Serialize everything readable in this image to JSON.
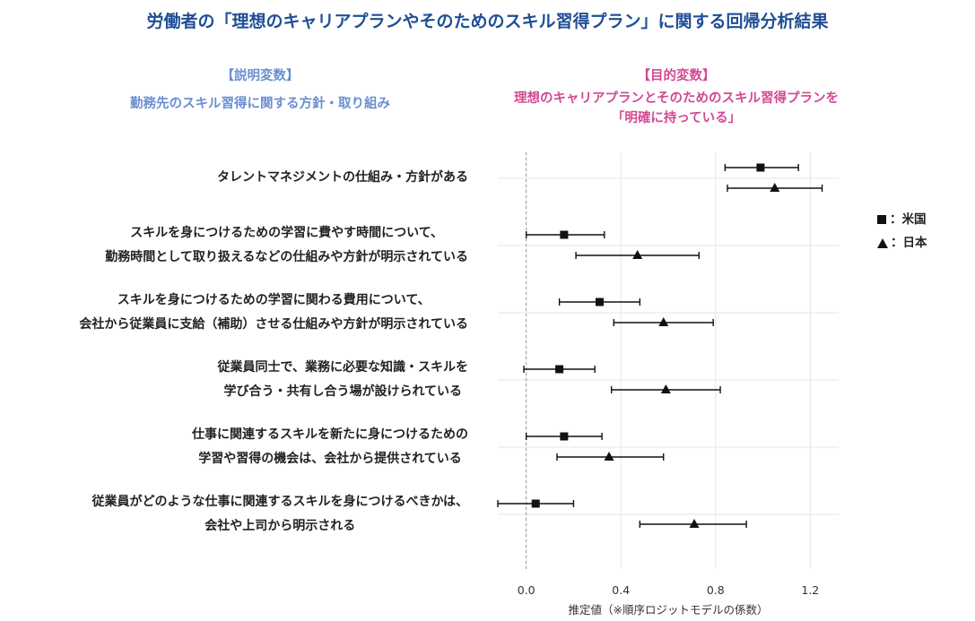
{
  "title": "労働者の「理想のキャリアプランやそのためのスキル習得プラン」に関する回帰分析結果",
  "explanatory": {
    "tag": "【説明変数】",
    "text": "勤務先のスキル習得に関する方針・取り組み"
  },
  "target": {
    "tag": "【目的変数】",
    "line1": "理想のキャリアプランとそのためのスキル習得プランを",
    "line2": "「明確に持っている」"
  },
  "legend": {
    "us": "：米国",
    "jp": "：日本"
  },
  "chart_data": {
    "type": "scatter",
    "subtype": "coefficient-plot-with-error-bars",
    "xlabel": "推定値（※順序ロジットモデルの係数）",
    "xlim": [
      -0.12,
      1.32
    ],
    "xticks": [
      0.0,
      0.4,
      0.8,
      1.2
    ],
    "xtick_labels": [
      "0.0",
      "0.4",
      "0.8",
      "1.2"
    ],
    "reference_line": 0.0,
    "grid": true,
    "legend_position": "right",
    "categories": [
      [
        "タレントマネジメントの仕組み・方針がある"
      ],
      [
        "スキルを身につけるための学習に費やす時間について、",
        "勤務時間として取り扱えるなどの仕組みや方針が明示されている"
      ],
      [
        "スキルを身につけるための学習に関わる費用について、",
        "会社から従業員に支給（補助）させる仕組みや方針が明示されている"
      ],
      [
        "従業員同士で、業務に必要な知識・スキルを",
        "学び合う・共有し合う場が設けられている"
      ],
      [
        "仕事に関連するスキルを新たに身につけるための",
        "学習や習得の機会は、会社から提供されている"
      ],
      [
        "従業員がどのような仕事に関連するスキルを身につけるべきかは、",
        "会社や上司から明示される"
      ]
    ],
    "series": [
      {
        "name": "米国",
        "marker": "square",
        "estimates": [
          0.99,
          0.16,
          0.31,
          0.14,
          0.16,
          0.04
        ],
        "ci_low": [
          0.84,
          0.0,
          0.14,
          -0.01,
          0.0,
          -0.12
        ],
        "ci_high": [
          1.15,
          0.33,
          0.48,
          0.29,
          0.32,
          0.2
        ]
      },
      {
        "name": "日本",
        "marker": "triangle",
        "estimates": [
          1.05,
          0.47,
          0.58,
          0.59,
          0.35,
          0.71
        ],
        "ci_low": [
          0.85,
          0.21,
          0.37,
          0.36,
          0.13,
          0.48
        ],
        "ci_high": [
          1.25,
          0.73,
          0.79,
          0.82,
          0.58,
          0.93
        ]
      }
    ]
  }
}
